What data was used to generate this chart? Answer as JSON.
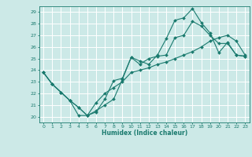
{
  "xlabel": "Humidex (Indice chaleur)",
  "ylabel": "",
  "bg_color": "#cce9e7",
  "line_color": "#1a7a6e",
  "grid_color": "#ffffff",
  "xlim": [
    -0.5,
    23.5
  ],
  "ylim": [
    19.5,
    29.5
  ],
  "xticks": [
    0,
    1,
    2,
    3,
    4,
    5,
    6,
    7,
    8,
    9,
    10,
    11,
    12,
    13,
    14,
    15,
    16,
    17,
    18,
    19,
    20,
    21,
    22,
    23
  ],
  "yticks": [
    20,
    21,
    22,
    23,
    24,
    25,
    26,
    27,
    28,
    29
  ],
  "series": [
    {
      "x": [
        0,
        1,
        2,
        3,
        4,
        5,
        6,
        7,
        8,
        9,
        10,
        11,
        12,
        13,
        14,
        15,
        16,
        17,
        18,
        19,
        20,
        21,
        22,
        23
      ],
      "y": [
        23.8,
        22.8,
        22.1,
        21.4,
        20.8,
        20.1,
        20.5,
        21.0,
        21.5,
        23.2,
        25.1,
        24.8,
        24.5,
        25.3,
        26.7,
        28.3,
        28.5,
        29.3,
        28.1,
        27.2,
        25.5,
        26.4,
        25.3,
        25.2
      ]
    },
    {
      "x": [
        0,
        1,
        2,
        3,
        4,
        5,
        6,
        7,
        8,
        9,
        10,
        11,
        12,
        13,
        14,
        15,
        16,
        17,
        18,
        19,
        20,
        21,
        22,
        23
      ],
      "y": [
        23.8,
        22.8,
        22.1,
        21.4,
        20.1,
        20.1,
        20.4,
        21.5,
        23.1,
        23.3,
        25.1,
        24.5,
        25.0,
        25.2,
        25.3,
        26.8,
        27.0,
        28.2,
        27.8,
        27.0,
        26.3,
        26.3,
        25.3,
        25.2
      ]
    },
    {
      "x": [
        0,
        1,
        2,
        3,
        4,
        5,
        6,
        7,
        8,
        9,
        10,
        11,
        12,
        13,
        14,
        15,
        16,
        17,
        18,
        19,
        20,
        21,
        22,
        23
      ],
      "y": [
        23.8,
        22.8,
        22.1,
        21.4,
        20.8,
        20.1,
        21.2,
        22.0,
        22.5,
        23.0,
        23.8,
        24.0,
        24.2,
        24.5,
        24.7,
        25.0,
        25.3,
        25.6,
        26.0,
        26.5,
        26.8,
        27.0,
        26.5,
        25.3
      ]
    }
  ]
}
